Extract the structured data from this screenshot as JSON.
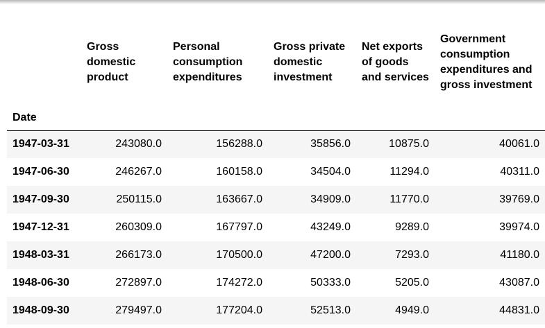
{
  "table": {
    "columns": [
      "Gross domestic product",
      "Personal consumption expenditures",
      "Gross private domestic investment",
      "Net exports of goods and services",
      "Government consumption expenditures and gross investment"
    ],
    "index_name": "Date",
    "rows": [
      {
        "date": "1947-03-31",
        "values": [
          "243080.0",
          "156288.0",
          "35856.0",
          "10875.0",
          "40061.0"
        ]
      },
      {
        "date": "1947-06-30",
        "values": [
          "246267.0",
          "160158.0",
          "34504.0",
          "11294.0",
          "40311.0"
        ]
      },
      {
        "date": "1947-09-30",
        "values": [
          "250115.0",
          "163667.0",
          "34909.0",
          "11770.0",
          "39769.0"
        ]
      },
      {
        "date": "1947-12-31",
        "values": [
          "260309.0",
          "167797.0",
          "43249.0",
          "9289.0",
          "39974.0"
        ]
      },
      {
        "date": "1948-03-31",
        "values": [
          "266173.0",
          "170500.0",
          "47200.0",
          "7293.0",
          "41180.0"
        ]
      },
      {
        "date": "1948-06-30",
        "values": [
          "272897.0",
          "174272.0",
          "50333.0",
          "5205.0",
          "43087.0"
        ]
      },
      {
        "date": "1948-09-30",
        "values": [
          "279497.0",
          "177204.0",
          "52513.0",
          "4949.0",
          "44831.0"
        ]
      }
    ]
  },
  "colors": {
    "stripe_row": "#f5f5f5",
    "header_rule": "#000000"
  }
}
